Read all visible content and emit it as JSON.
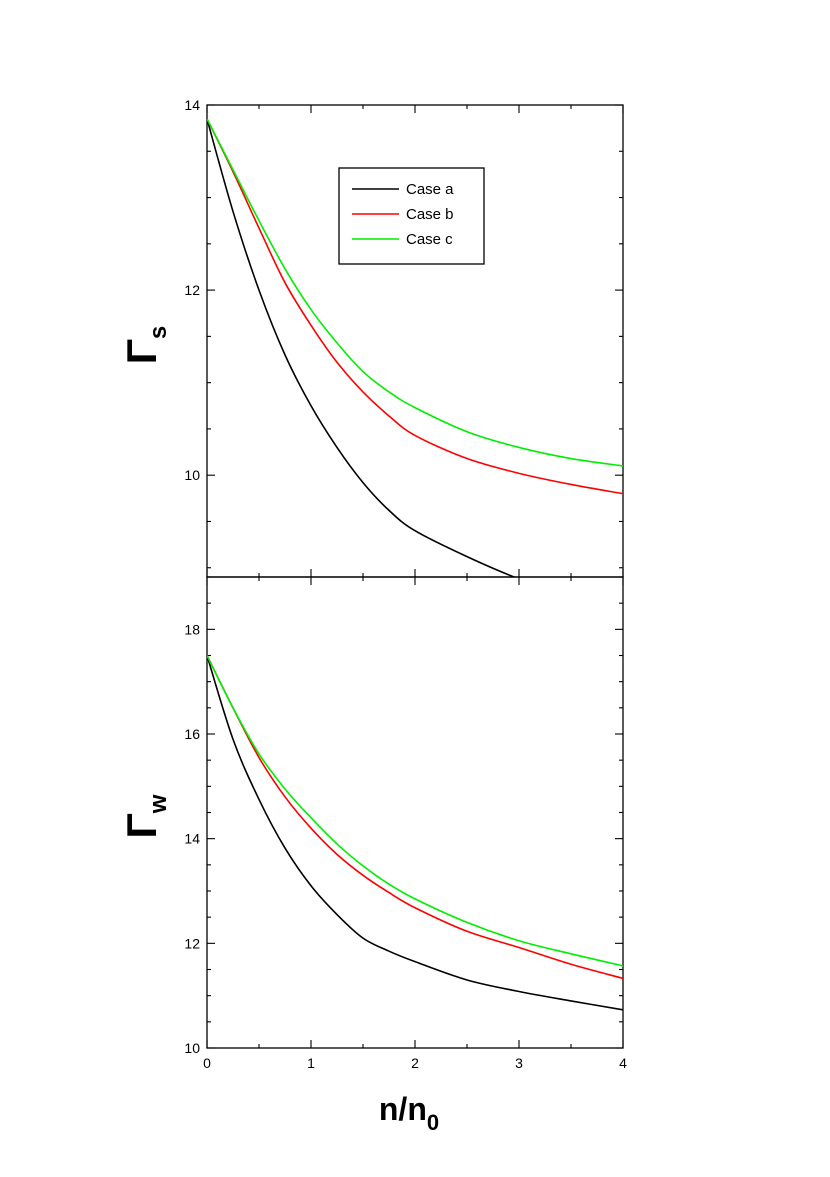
{
  "chart_data": [
    {
      "type": "line",
      "ylabel": {
        "symbol": "Γ",
        "sub": "s"
      },
      "xlim": [
        0,
        4
      ],
      "ylim": [
        8.9,
        14
      ],
      "yticks": [
        10,
        12,
        14
      ],
      "yminor_step": 0.5,
      "xticks": [
        0,
        1,
        2,
        3,
        4
      ],
      "xminor_step": 0.5,
      "show_x_tick_labels": false,
      "grid": false,
      "legend_position": "top-center",
      "legend": [
        "Case a",
        "Case b",
        "Case c"
      ],
      "series": [
        {
          "name": "Case a",
          "color": "#000000",
          "x": [
            0,
            0.25,
            0.5,
            0.75,
            1,
            1.25,
            1.5,
            1.75,
            2,
            2.5,
            3,
            3.5,
            4
          ],
          "y": [
            13.85,
            12.85,
            12.0,
            11.3,
            10.75,
            10.3,
            9.92,
            9.62,
            9.4,
            9.12,
            8.88,
            8.7,
            8.55
          ]
        },
        {
          "name": "Case b",
          "color": "#ff0000",
          "x": [
            0,
            0.25,
            0.5,
            0.75,
            1,
            1.25,
            1.5,
            1.75,
            2,
            2.5,
            3,
            3.5,
            4
          ],
          "y": [
            13.85,
            13.28,
            12.67,
            12.08,
            11.62,
            11.22,
            10.9,
            10.64,
            10.43,
            10.18,
            10.02,
            9.9,
            9.8
          ]
        },
        {
          "name": "Case c",
          "color": "#00ee00",
          "x": [
            0,
            0.25,
            0.5,
            0.75,
            1,
            1.25,
            1.5,
            1.75,
            2,
            2.5,
            3,
            3.5,
            4
          ],
          "y": [
            13.85,
            13.3,
            12.75,
            12.23,
            11.79,
            11.43,
            11.12,
            10.9,
            10.73,
            10.47,
            10.3,
            10.18,
            10.1
          ]
        }
      ]
    },
    {
      "type": "line",
      "ylabel": {
        "symbol": "Γ",
        "sub": "w"
      },
      "xlabel": {
        "main": "n/n",
        "sub": "0"
      },
      "xlim": [
        0,
        4
      ],
      "ylim": [
        10,
        19
      ],
      "yticks": [
        10,
        12,
        14,
        16,
        18
      ],
      "yminor_step": 0.5,
      "xticks": [
        0,
        1,
        2,
        3,
        4
      ],
      "xminor_step": 0.5,
      "show_x_tick_labels": true,
      "grid": false,
      "series": [
        {
          "name": "Case a",
          "color": "#000000",
          "x": [
            0,
            0.25,
            0.5,
            0.75,
            1,
            1.25,
            1.5,
            1.75,
            2,
            2.5,
            3,
            3.5,
            4
          ],
          "y": [
            17.5,
            15.9,
            14.75,
            13.82,
            13.1,
            12.55,
            12.1,
            11.85,
            11.65,
            11.3,
            11.08,
            10.9,
            10.73
          ]
        },
        {
          "name": "Case b",
          "color": "#ff0000",
          "x": [
            0,
            0.25,
            0.5,
            0.75,
            1,
            1.25,
            1.5,
            1.75,
            2,
            2.5,
            3,
            3.5,
            4
          ],
          "y": [
            17.5,
            16.5,
            15.55,
            14.8,
            14.2,
            13.7,
            13.3,
            12.97,
            12.68,
            12.23,
            11.92,
            11.6,
            11.33
          ]
        },
        {
          "name": "Case c",
          "color": "#00ee00",
          "x": [
            0,
            0.25,
            0.5,
            0.75,
            1,
            1.25,
            1.5,
            1.75,
            2,
            2.5,
            3,
            3.5,
            4
          ],
          "y": [
            17.5,
            16.5,
            15.62,
            14.95,
            14.4,
            13.9,
            13.48,
            13.13,
            12.85,
            12.4,
            12.05,
            11.8,
            11.57
          ]
        }
      ]
    }
  ]
}
